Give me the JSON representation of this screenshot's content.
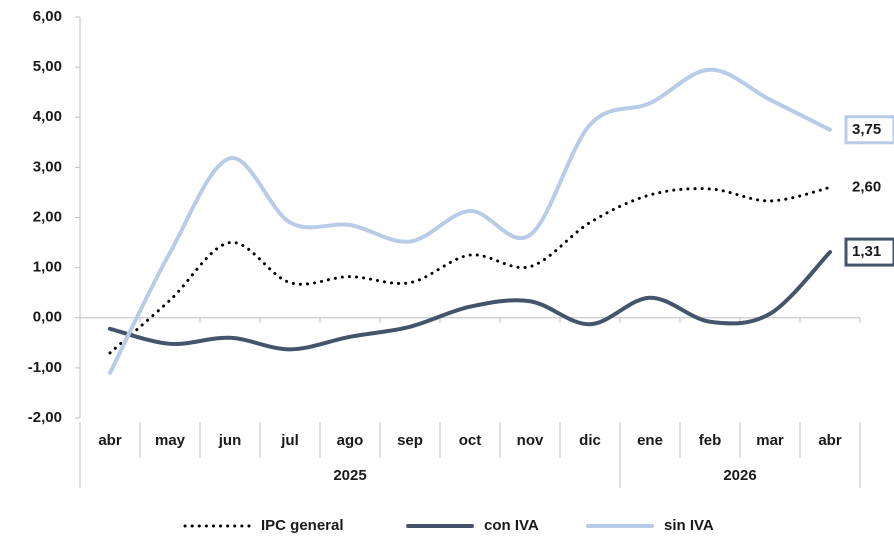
{
  "chart_data": {
    "type": "line",
    "categories": [
      "abr",
      "may",
      "jun",
      "jul",
      "ago",
      "sep",
      "oct",
      "nov",
      "dic",
      "ene",
      "feb",
      "mar",
      "abr"
    ],
    "category_groups": [
      "2025",
      "2025",
      "2025",
      "2025",
      "2025",
      "2025",
      "2025",
      "2025",
      "2025",
      "2026",
      "2026",
      "2026",
      "2026"
    ],
    "ylim": [
      -2,
      6
    ],
    "yticks": [
      {
        "value": -2,
        "label": "-2,00"
      },
      {
        "value": -1,
        "label": "-1,00"
      },
      {
        "value": 0,
        "label": "0,00"
      },
      {
        "value": 1,
        "label": "1,00"
      },
      {
        "value": 2,
        "label": "2,00"
      },
      {
        "value": 3,
        "label": "3,00"
      },
      {
        "value": 4,
        "label": "4,00"
      },
      {
        "value": 5,
        "label": "5,00"
      },
      {
        "value": 6,
        "label": "6,00"
      }
    ],
    "legend": "bottom",
    "series": [
      {
        "name": "IPC general",
        "color": "#000000",
        "dash": "dotted",
        "label_box": false,
        "values": [
          -0.7,
          0.35,
          1.5,
          0.7,
          0.82,
          0.7,
          1.25,
          1.02,
          1.9,
          2.45,
          2.57,
          2.33,
          2.6
        ],
        "value_labels": [
          null,
          null,
          null,
          null,
          null,
          null,
          null,
          null,
          null,
          null,
          null,
          null,
          "2,60"
        ]
      },
      {
        "name": "con IVA",
        "color": "#44546a",
        "dash": "solid",
        "label_box": true,
        "values": [
          -0.22,
          -0.52,
          -0.4,
          -0.63,
          -0.38,
          -0.18,
          0.22,
          0.33,
          -0.13,
          0.4,
          -0.08,
          0.08,
          1.31
        ],
        "value_labels": [
          null,
          null,
          null,
          null,
          null,
          null,
          null,
          null,
          null,
          null,
          null,
          null,
          "1,31"
        ]
      },
      {
        "name": "sin IVA",
        "color": "#b8cce8",
        "dash": "solid",
        "label_box": true,
        "values": [
          -1.1,
          1.3,
          3.18,
          1.9,
          1.85,
          1.52,
          2.13,
          1.65,
          3.85,
          4.28,
          4.95,
          4.35,
          3.75
        ],
        "value_labels": [
          null,
          null,
          null,
          null,
          null,
          null,
          null,
          null,
          null,
          null,
          null,
          null,
          "3,75"
        ]
      }
    ]
  }
}
